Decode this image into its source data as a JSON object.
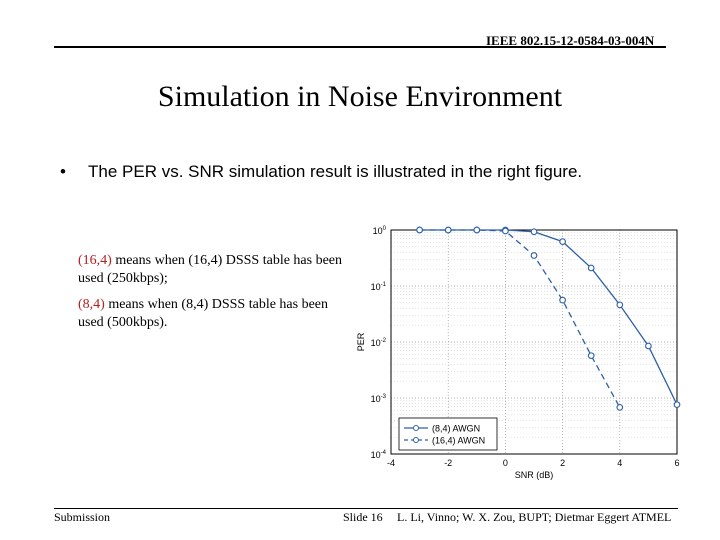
{
  "header": {
    "doc_id": "IEEE 802.15-12-0584-03-004N"
  },
  "slide": {
    "title": "Simulation in Noise Environment"
  },
  "bullet": {
    "marker": "•",
    "text": "The PER vs. SNR simulation result is illustrated in the right figure."
  },
  "notes": [
    {
      "key": "(16,4)",
      "text": " means when (16,4) DSSS table has been used (250kbps);"
    },
    {
      "key": "(8,4)",
      "text": " means when (8,4) DSSS table has been used (500kbps)."
    }
  ],
  "footer": {
    "left": "Submission",
    "center": "Slide 16",
    "right": "L. Li, Vinno; W. X. Zou, BUPT; Dietmar Eggert ATMEL"
  },
  "colors": {
    "series": "#2e5fa8",
    "key_text": "#b22222"
  },
  "chart_data": {
    "type": "line",
    "xlabel": "SNR (dB)",
    "ylabel": "PER",
    "xlim": [
      -4,
      6
    ],
    "ylim_log10": [
      -4,
      0
    ],
    "yscale": "log",
    "grid": true,
    "legend_position": "bottom-right",
    "x_ticks": [
      "-4",
      "-2",
      "0",
      "2",
      "4",
      "6"
    ],
    "y_ticks": [
      {
        "base": "10",
        "exp": "0"
      },
      {
        "base": "10",
        "exp": "-1"
      },
      {
        "base": "10",
        "exp": "-2"
      },
      {
        "base": "10",
        "exp": "-3"
      },
      {
        "base": "10",
        "exp": "-4"
      }
    ],
    "series": [
      {
        "name": "(8,4) AWGN",
        "style": "solid",
        "x": [
          -3,
          -2,
          -1,
          0,
          1,
          2,
          3,
          4,
          5,
          6
        ],
        "y": [
          1,
          1,
          1,
          1,
          0.93,
          0.62,
          0.21,
          0.046,
          0.0085,
          0.00076
        ]
      },
      {
        "name": "(16,4) AWGN",
        "style": "dashed",
        "x": [
          -3,
          -2,
          -1,
          0,
          1,
          2,
          3,
          4
        ],
        "y": [
          1,
          1,
          1,
          0.96,
          0.35,
          0.056,
          0.0057,
          0.00068
        ]
      }
    ]
  }
}
